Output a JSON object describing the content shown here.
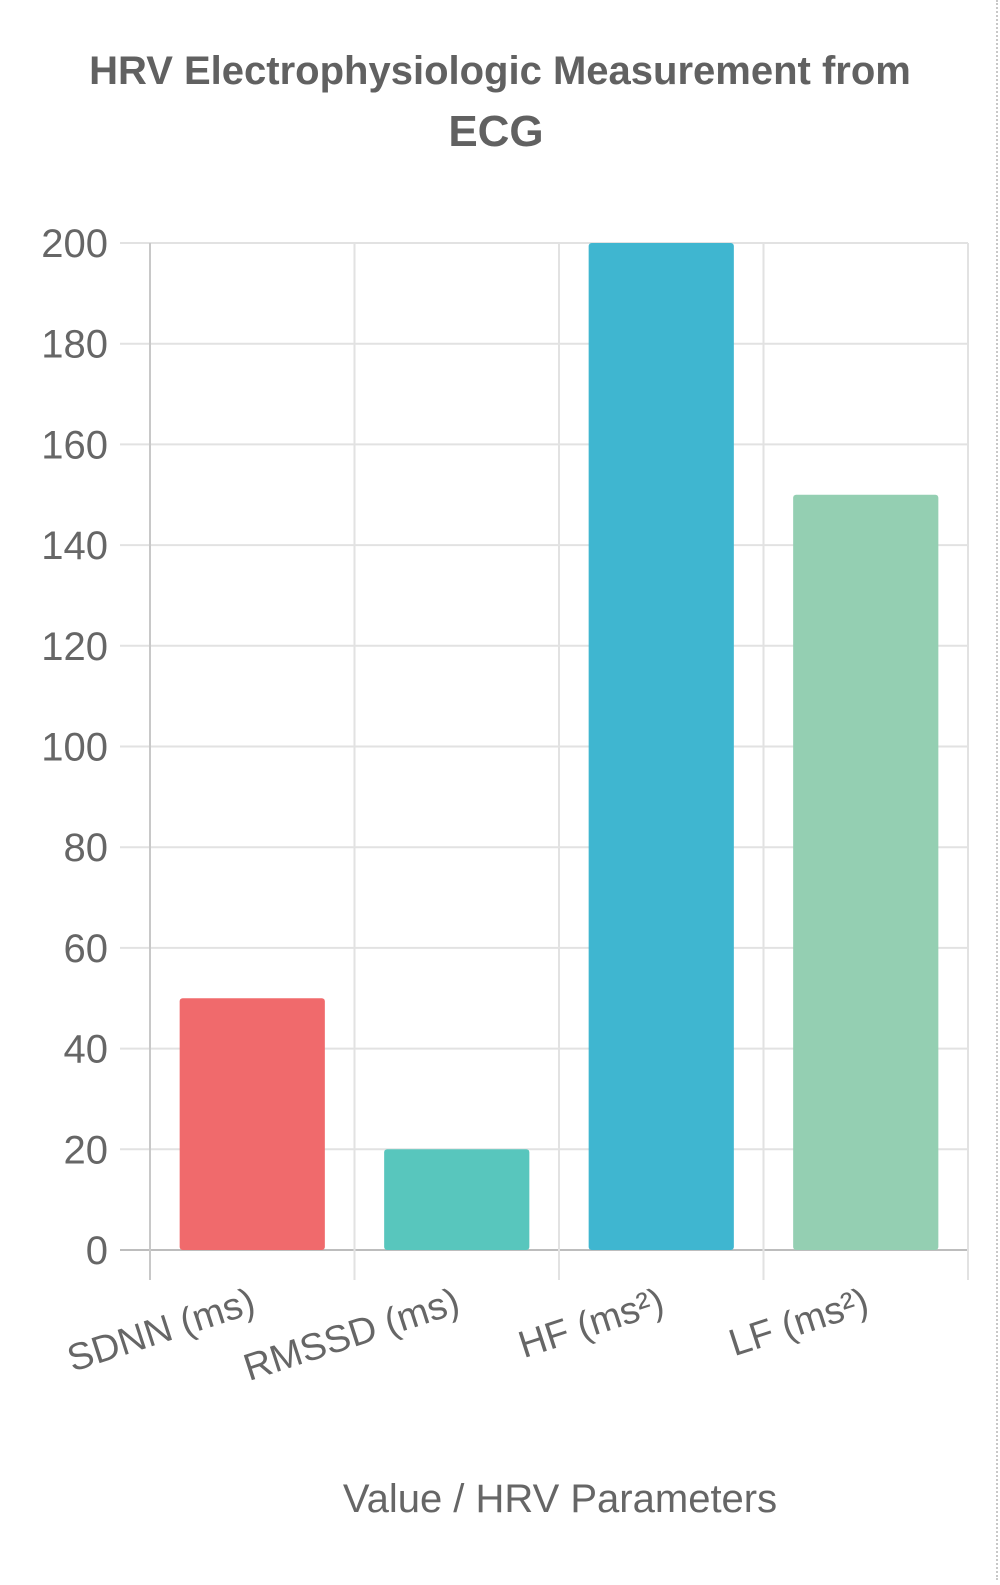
{
  "chart_data": {
    "type": "bar",
    "title_line1": "HRV Electrophysiologic Measurement from",
    "title_line2": "ECG",
    "xlabel": "Value / HRV Parameters",
    "ylabel": "",
    "categories": [
      "SDNN (ms)",
      "RMSSD (ms)",
      "HF (ms²)",
      "LF (ms²)"
    ],
    "values": [
      50,
      20,
      200,
      150
    ],
    "colors": [
      "#f06a6c",
      "#58c6bd",
      "#3fb6d0",
      "#94cfb2"
    ],
    "ylim": [
      0,
      200
    ],
    "yticks": [
      0,
      20,
      40,
      60,
      80,
      100,
      120,
      140,
      160,
      180,
      200
    ],
    "grid": true,
    "legend": "none"
  }
}
